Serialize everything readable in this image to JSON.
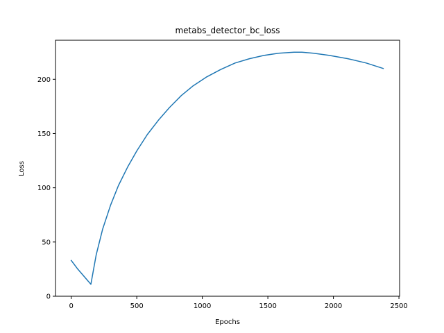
{
  "chart_data": {
    "type": "line",
    "title": "metabs_detector_bc_loss",
    "xlabel": "Epochs",
    "ylabel": "Loss",
    "xlim": [
      -120,
      2505
    ],
    "ylim": [
      0,
      236
    ],
    "xticks": [
      0,
      500,
      1000,
      1500,
      2000,
      2500
    ],
    "yticks": [
      0,
      50,
      100,
      150,
      200
    ],
    "xtick_labels": [
      "0",
      "500",
      "1000",
      "1500",
      "2000",
      "2500"
    ],
    "ytick_labels": [
      "0",
      "50",
      "100",
      "150",
      "200"
    ],
    "grid": false,
    "legend": "none",
    "series": [
      {
        "color": "#1f77b4",
        "x": [
          0,
          50,
          100,
          150,
          190,
          240,
          300,
          360,
          430,
          500,
          580,
          670,
          750,
          840,
          930,
          1030,
          1140,
          1250,
          1360,
          1470,
          1580,
          1700,
          1760,
          1850,
          1970,
          2110,
          2250,
          2380
        ],
        "y": [
          33,
          25,
          18,
          11,
          38,
          62,
          84,
          102,
          119,
          134,
          149,
          163,
          174,
          185,
          194,
          202,
          209,
          215,
          219,
          222,
          224,
          225,
          225,
          224,
          222,
          219,
          215,
          210
        ]
      }
    ]
  }
}
